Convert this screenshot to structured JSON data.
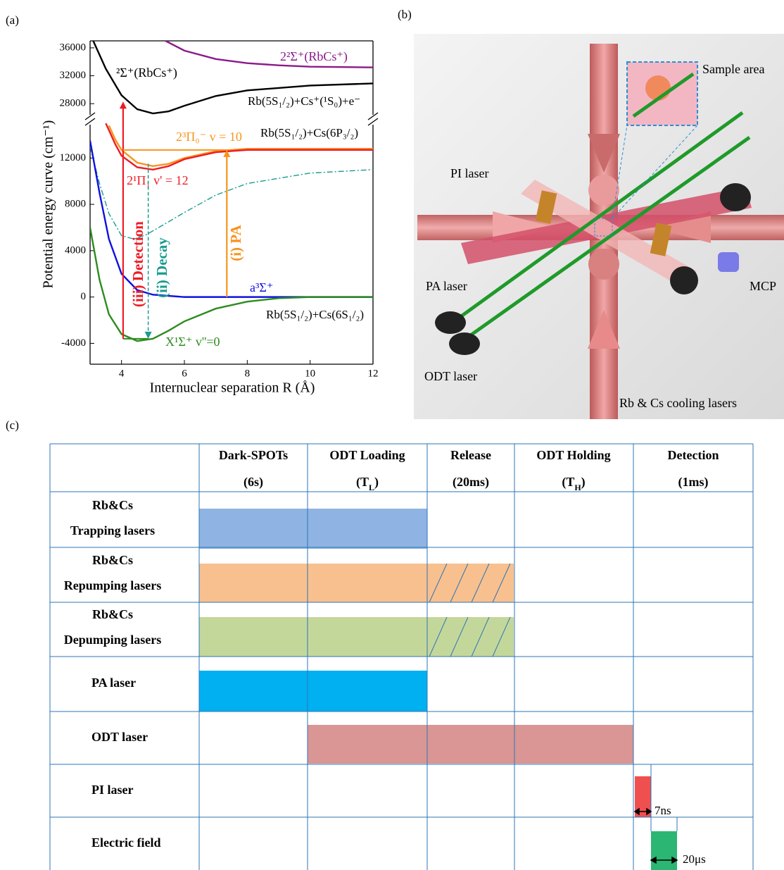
{
  "panel_labels": [
    "(a)",
    "(b)",
    "(c)"
  ],
  "chart_data": {
    "type": "line",
    "xlabel": "Internuclear separation R (Å)",
    "ylabel": "Potential energy curve (cm⁻¹)",
    "xlim": [
      3,
      12
    ],
    "xticks": [
      4,
      6,
      8,
      10,
      12
    ],
    "ylim": [
      -5800,
      15000
    ],
    "yticks": [
      -4000,
      0,
      4000,
      8000,
      12000
    ],
    "y2lim": [
      26200,
      37000
    ],
    "y2ticks": [
      28000,
      32000,
      36000
    ],
    "series": [
      {
        "name": "2²Σ⁺(RbCs⁺)",
        "color": "#8b1a8b",
        "axis": "y2",
        "x": [
          5.4,
          6,
          7,
          8,
          9,
          10,
          12
        ],
        "values": [
          37000,
          35600,
          34400,
          33800,
          33500,
          33300,
          33200
        ]
      },
      {
        "name": "²Σ⁺(RbCs⁺)",
        "color": "#000000",
        "axis": "y2",
        "x": [
          3.1,
          3.5,
          4,
          4.5,
          5,
          5.5,
          6,
          7,
          8,
          10,
          12
        ],
        "values": [
          37000,
          33000,
          29200,
          27200,
          26600,
          26900,
          27700,
          29100,
          29900,
          30600,
          30900
        ]
      },
      {
        "name": "2³Π₀⁻ v = 10",
        "color": "#f7941d",
        "x": [
          3.6,
          3.8,
          4,
          4.5,
          5,
          5.5,
          6,
          7,
          8,
          10,
          12
        ],
        "values": [
          14800,
          13600,
          12700,
          11600,
          11300,
          11500,
          12000,
          12600,
          12800,
          12800,
          12800
        ]
      },
      {
        "name": "2¹Π₁ v' = 12",
        "color": "#ee1c25",
        "x": [
          3.5,
          3.8,
          4,
          4.5,
          5,
          5.5,
          6,
          7,
          8,
          10,
          12
        ],
        "values": [
          15000,
          13200,
          12200,
          11200,
          11000,
          11300,
          11900,
          12500,
          12700,
          12700,
          12700
        ]
      },
      {
        "color": "#1a9c8f",
        "style": "dash-dot",
        "x": [
          3,
          3.3,
          3.6,
          4,
          4.4,
          4.8,
          5.5,
          6,
          7,
          8,
          10,
          12
        ],
        "values": [
          13000,
          9800,
          7200,
          5300,
          5000,
          5400,
          6500,
          7300,
          8800,
          9800,
          10700,
          11000
        ]
      },
      {
        "name": "a³Σ⁺",
        "color": "#1010e0",
        "x": [
          3,
          3.3,
          3.6,
          4,
          4.5,
          5,
          6,
          7,
          8,
          12
        ],
        "values": [
          13500,
          9000,
          5000,
          2000,
          600,
          200,
          0,
          0,
          0,
          0
        ]
      },
      {
        "name": "X¹Σ⁺ v''=0",
        "color": "#2e8b20",
        "x": [
          3,
          3.3,
          3.6,
          4,
          4.5,
          5,
          5.5,
          6,
          7,
          8,
          9,
          10,
          12
        ],
        "values": [
          6000,
          1500,
          -1500,
          -3200,
          -3800,
          -3600,
          -2900,
          -2100,
          -1000,
          -400,
          -100,
          0,
          0
        ]
      }
    ],
    "labels": [
      "Rb(5S₁/₂)+Cs⁺(¹S₀)+e⁻",
      "Rb(5S₁/₂)+Cs(6P₃/₂)",
      "Rb(5S₁/₂)+Cs(6S₁/₂)"
    ],
    "transitions": [
      {
        "name": "(iii) Detection",
        "color": "#ee1c25",
        "x": 4.05,
        "values": [
          -3600,
          28300
        ]
      },
      {
        "name": "(ii) Decay",
        "color": "#1a9c8f",
        "x": 4.85,
        "values": [
          11500,
          -3600
        ]
      },
      {
        "name": "(i) PA",
        "color": "#f7941d",
        "x": 7.35,
        "values": [
          0,
          12700
        ]
      }
    ]
  },
  "setup_labels": [
    "Sample area",
    "PI laser",
    "PA laser",
    "MCP",
    "ODT laser",
    "Rb & Cs cooling lasers"
  ],
  "timing_table": {
    "header": [
      {
        "title": "Dark-SPOTs",
        "duration": [
          "(6s)"
        ]
      },
      {
        "title": "ODT Loading",
        "duration": [
          "(T",
          "L",
          ")"
        ]
      },
      {
        "title": "Release",
        "duration": [
          "(20ms)"
        ]
      },
      {
        "title": "ODT Holding",
        "duration": [
          "(T",
          "H",
          ")"
        ]
      },
      {
        "title": "Detection",
        "duration": [
          "(1ms)"
        ]
      }
    ],
    "rows": [
      [
        "Rb&Cs",
        "Trapping lasers"
      ],
      [
        "Rb&Cs",
        "Repumping lasers"
      ],
      [
        "Rb&Cs",
        "Depumping lasers"
      ],
      [
        "PA laser"
      ],
      [
        "ODT laser"
      ],
      [
        "PI laser"
      ],
      [
        "Electric field"
      ]
    ],
    "pulse_widths": [
      "7ns",
      "20μs"
    ]
  }
}
